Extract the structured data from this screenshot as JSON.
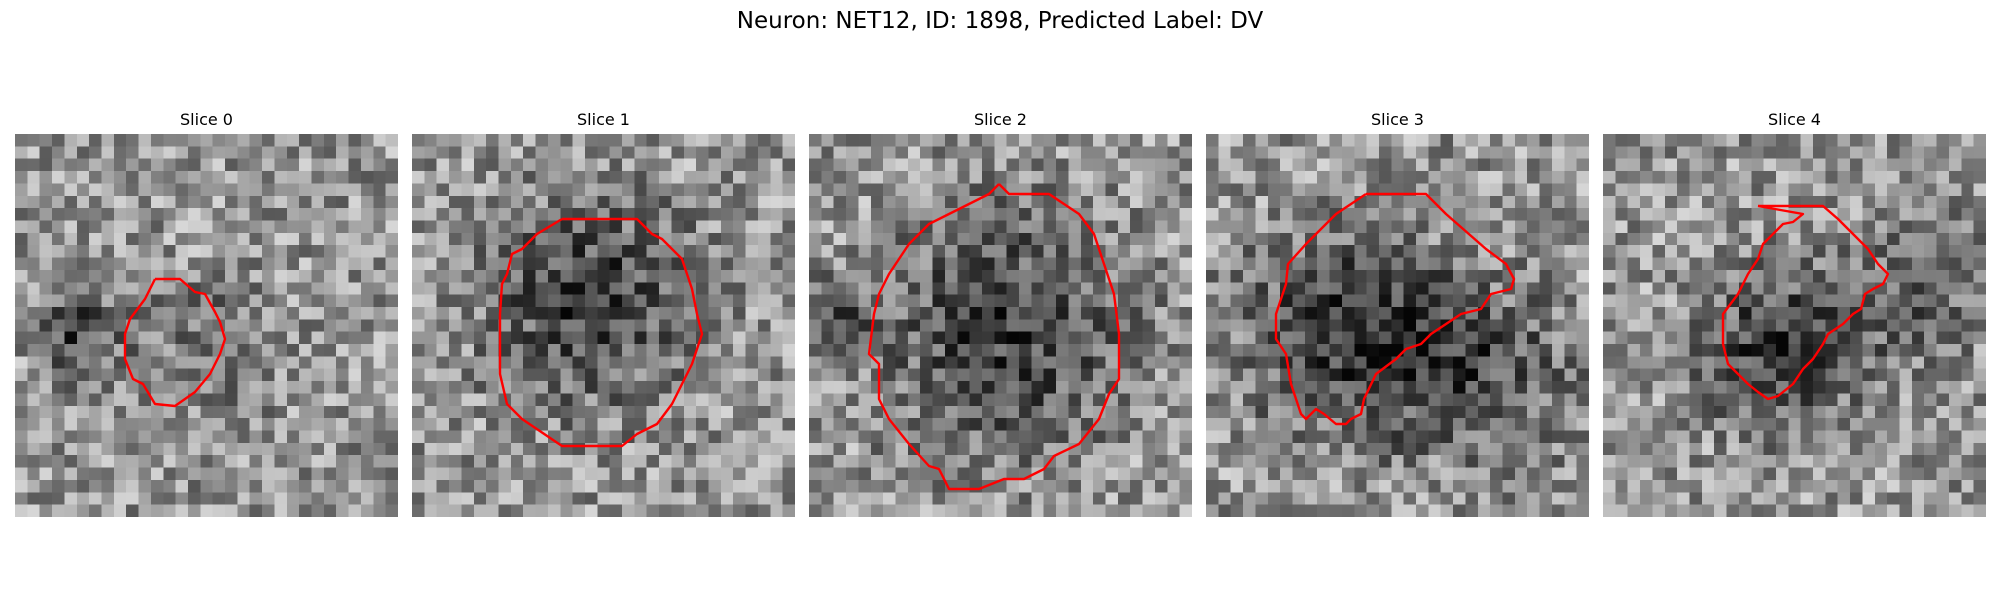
{
  "title": "Neuron: NET12, ID: 1898, Predicted Label: DV",
  "colors": {
    "contour": "#ff0000",
    "background": "#ffffff"
  },
  "slices": [
    {
      "title": "Slice 0",
      "seed": 11,
      "grid": 31
    },
    {
      "title": "Slice 1",
      "seed": 23,
      "grid": 31
    },
    {
      "title": "Slice 2",
      "seed": 37,
      "grid": 31
    },
    {
      "title": "Slice 3",
      "seed": 41,
      "grid": 31
    },
    {
      "title": "Slice 4",
      "seed": 53,
      "grid": 31
    }
  ]
}
